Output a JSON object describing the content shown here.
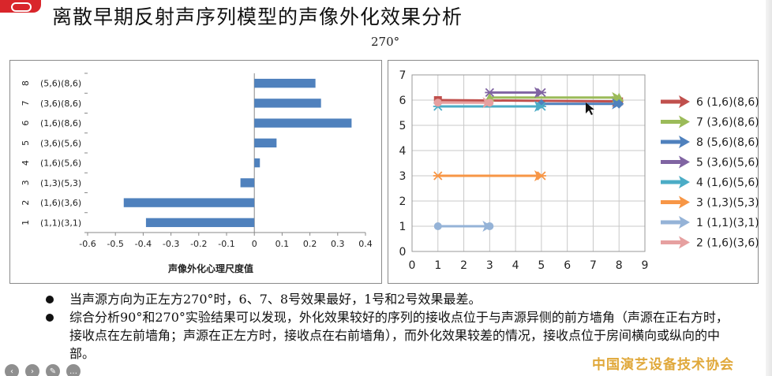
{
  "slide": {
    "title": "离散早期反射声序列模型的声像外化效果分析",
    "subtitle": "270°",
    "org": "中国演艺设备技术协会"
  },
  "bullets": [
    "当声源方向为正左方270°时，6、7、8号效果最好，1号和2号效果最差。",
    "综合分析90°和270°实验结果可以发现，外化效果较好的序列的接收点位于与声源异侧的前方墙角（声源在正右方时，接收点在左前墙角；声源在正左方时，接收点在右前墙角），而外化效果较差的情况，接收点位于房间横向或纵向的中部。"
  ],
  "toolbar": {
    "icons": [
      "prev-icon",
      "next-icon",
      "pen-icon",
      "menu-icon"
    ],
    "glyphs": [
      "‹",
      "›",
      "✎",
      "…"
    ]
  },
  "chart_data": [
    {
      "type": "bar",
      "orientation": "horizontal",
      "xlabel": "声像外化心理尺度值",
      "xlim": [
        -0.6,
        0.4
      ],
      "xticks": [
        "-0.6",
        "-0.5",
        "-0.4",
        "-0.3",
        "-0.2",
        "-0.1",
        "0",
        "0.1",
        "0.2",
        "0.3",
        "0.4"
      ],
      "categories": [
        {
          "num": "1",
          "label": "(1,1)(3,1)",
          "value": -0.39
        },
        {
          "num": "2",
          "label": "(1,6)(3,6)",
          "value": -0.47
        },
        {
          "num": "3",
          "label": "(1,3)(5,3)",
          "value": -0.05
        },
        {
          "num": "4",
          "label": "(1,6)(5,6)",
          "value": 0.02
        },
        {
          "num": "5",
          "label": "(3,6)(5,6)",
          "value": 0.08
        },
        {
          "num": "6",
          "label": "(1,6)(8,6)",
          "value": 0.35
        },
        {
          "num": "7",
          "label": "(3,6)(8,6)",
          "value": 0.24
        },
        {
          "num": "8",
          "label": "(5,6)(8,6)",
          "value": 0.22
        }
      ],
      "bar_color": "#4f81bd",
      "grid": false
    },
    {
      "type": "line",
      "xlim": [
        0,
        9
      ],
      "ylim": [
        0,
        7
      ],
      "xticks": [
        "0",
        "1",
        "2",
        "3",
        "4",
        "5",
        "6",
        "7",
        "8",
        "9"
      ],
      "yticks": [
        "0",
        "1",
        "2",
        "3",
        "4",
        "5",
        "6",
        "7"
      ],
      "grid": true,
      "legend_position": "right",
      "series": [
        {
          "name": "6 (1,6)(8,6)",
          "points": [
            [
              1,
              6.0
            ],
            [
              8,
              5.95
            ]
          ],
          "color": "#c0504d",
          "marker": "square"
        },
        {
          "name": "7 (3,6)(8,6)",
          "points": [
            [
              3,
              6.1
            ],
            [
              8,
              6.1
            ]
          ],
          "color": "#9bbb59",
          "marker": "triangle"
        },
        {
          "name": "8 (5,6)(8,6)",
          "points": [
            [
              5,
              5.85
            ],
            [
              8,
              5.85
            ]
          ],
          "color": "#4f81bd",
          "marker": "diamond"
        },
        {
          "name": "5 (3,6)(5,6)",
          "points": [
            [
              3,
              6.3
            ],
            [
              5,
              6.3
            ]
          ],
          "color": "#8064a2",
          "marker": "x"
        },
        {
          "name": "4 (1,6)(5,6)",
          "points": [
            [
              1,
              5.75
            ],
            [
              5,
              5.75
            ]
          ],
          "color": "#4bacc6",
          "marker": "x"
        },
        {
          "name": "3 (1,3)(5,3)",
          "points": [
            [
              1,
              3
            ],
            [
              5,
              3
            ]
          ],
          "color": "#f79646",
          "marker": "x"
        },
        {
          "name": "1 (1,1)(3,1)",
          "points": [
            [
              1,
              1
            ],
            [
              3,
              1
            ]
          ],
          "color": "#95b3d7",
          "marker": "circle"
        },
        {
          "name": "2 (1,6)(3,6)",
          "points": [
            [
              1,
              5.9
            ],
            [
              3,
              5.9
            ]
          ],
          "color": "#e6a0a0",
          "marker": "circle"
        }
      ]
    }
  ]
}
